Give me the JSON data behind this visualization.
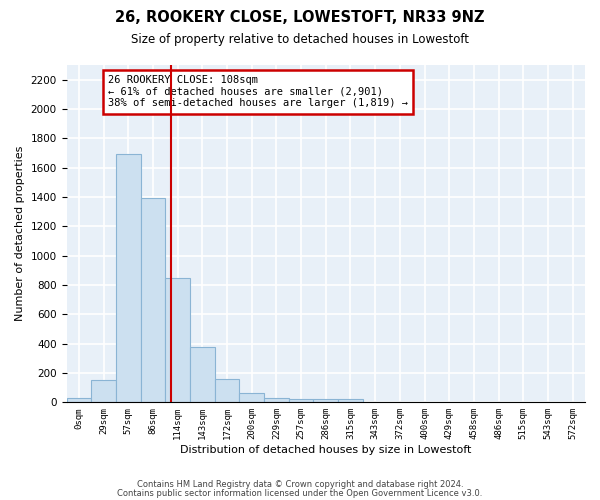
{
  "title": "26, ROOKERY CLOSE, LOWESTOFT, NR33 9NZ",
  "subtitle": "Size of property relative to detached houses in Lowestoft",
  "xlabel": "Distribution of detached houses by size in Lowestoft",
  "ylabel": "Number of detached properties",
  "bar_color": "#cce0f0",
  "bar_edge_color": "#8ab4d4",
  "background_color": "#e8f0f8",
  "grid_color": "#ffffff",
  "annotation_box_color": "#cc0000",
  "red_line_color": "#cc0000",
  "categories": [
    "0sqm",
    "29sqm",
    "57sqm",
    "86sqm",
    "114sqm",
    "143sqm",
    "172sqm",
    "200sqm",
    "229sqm",
    "257sqm",
    "286sqm",
    "315sqm",
    "343sqm",
    "372sqm",
    "400sqm",
    "429sqm",
    "458sqm",
    "486sqm",
    "515sqm",
    "543sqm",
    "572sqm"
  ],
  "values": [
    28,
    152,
    1695,
    1395,
    845,
    378,
    162,
    65,
    32,
    25,
    24,
    22,
    5,
    2,
    0,
    0,
    0,
    0,
    0,
    0,
    0
  ],
  "red_line_x": 3.72,
  "annotation_text_line1": "26 ROOKERY CLOSE: 108sqm",
  "annotation_text_line2": "← 61% of detached houses are smaller (2,901)",
  "annotation_text_line3": "38% of semi-detached houses are larger (1,819) →",
  "ylim": [
    0,
    2300
  ],
  "yticks": [
    0,
    200,
    400,
    600,
    800,
    1000,
    1200,
    1400,
    1600,
    1800,
    2000,
    2200
  ],
  "footer_line1": "Contains HM Land Registry data © Crown copyright and database right 2024.",
  "footer_line2": "Contains public sector information licensed under the Open Government Licence v3.0."
}
